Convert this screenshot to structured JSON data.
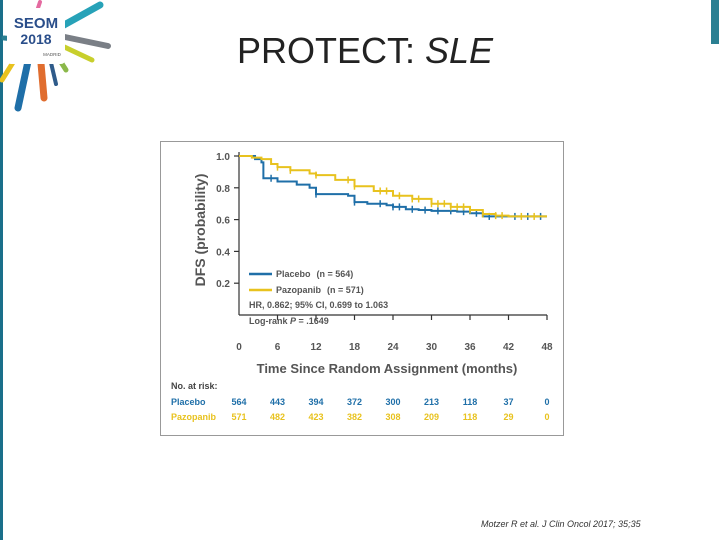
{
  "slide": {
    "title_prefix": "PROTECT: ",
    "title_emphasis": "SLE",
    "citation": "Motzer R et al. J Clin Oncol 2017; 35;35"
  },
  "logo": {
    "name": "SEOM",
    "year": "2018",
    "city": "MADRID"
  },
  "colors": {
    "placebo": "#1f6fa8",
    "pazopanib": "#e8c21e",
    "accent": "#2a7f92"
  },
  "chart_data": {
    "type": "line",
    "title": "",
    "xlabel": "Time Since Random Assignment (months)",
    "ylabel": "DFS (probability)",
    "xlim": [
      0,
      48
    ],
    "ylim": [
      0,
      1.0
    ],
    "xticks": [
      "0",
      "6",
      "12",
      "18",
      "24",
      "30",
      "36",
      "42",
      "48"
    ],
    "yticks": [
      "0.2",
      "0.4",
      "0.6",
      "0.8",
      "1.0"
    ],
    "legend": {
      "placebo": "Placebo",
      "placebo_n": "(n = 564)",
      "pazopanib": "Pazopanib",
      "pazopanib_n": "(n = 571)",
      "hr": "HR, 0.862; 95% CI, 0.699 to 1.063",
      "logrank_prefix": "Log-rank ",
      "logrank_p": "P",
      "logrank_suffix": " = .1649"
    },
    "series": [
      {
        "name": "Placebo",
        "x": [
          0,
          2.5,
          3.5,
          3.8,
          6,
          9,
          11,
          12,
          17,
          18,
          20,
          23,
          24,
          26,
          28,
          30,
          34,
          36,
          38,
          42,
          48
        ],
        "y": [
          1.0,
          0.98,
          0.96,
          0.86,
          0.84,
          0.82,
          0.8,
          0.76,
          0.75,
          0.71,
          0.7,
          0.69,
          0.68,
          0.665,
          0.66,
          0.655,
          0.65,
          0.64,
          0.62,
          0.62,
          0.62
        ],
        "censor_x": [
          5,
          12,
          18,
          22,
          24,
          25,
          27,
          29,
          31,
          33,
          35,
          37,
          39,
          43,
          45,
          47
        ]
      },
      {
        "name": "Pazopanib",
        "x": [
          0,
          2,
          3.5,
          5,
          6,
          8,
          11,
          12,
          15,
          18,
          21,
          24,
          27,
          30,
          33,
          36,
          38,
          40,
          42,
          48
        ],
        "y": [
          1.0,
          0.99,
          0.98,
          0.95,
          0.93,
          0.91,
          0.89,
          0.88,
          0.85,
          0.81,
          0.78,
          0.75,
          0.73,
          0.7,
          0.68,
          0.66,
          0.635,
          0.625,
          0.62,
          0.62
        ],
        "censor_x": [
          6,
          8,
          12,
          17,
          18,
          22,
          23,
          25,
          27,
          28,
          30,
          31,
          32,
          33,
          34,
          35,
          36,
          38,
          40,
          41,
          44,
          46
        ]
      }
    ],
    "at_risk": {
      "header": "No. at risk:",
      "rows": [
        {
          "name": "Placebo",
          "values": [
            "564",
            "443",
            "394",
            "372",
            "300",
            "213",
            "118",
            "37",
            "0"
          ]
        },
        {
          "name": "Pazopanib",
          "values": [
            "571",
            "482",
            "423",
            "382",
            "308",
            "209",
            "118",
            "29",
            "0"
          ]
        }
      ]
    }
  }
}
